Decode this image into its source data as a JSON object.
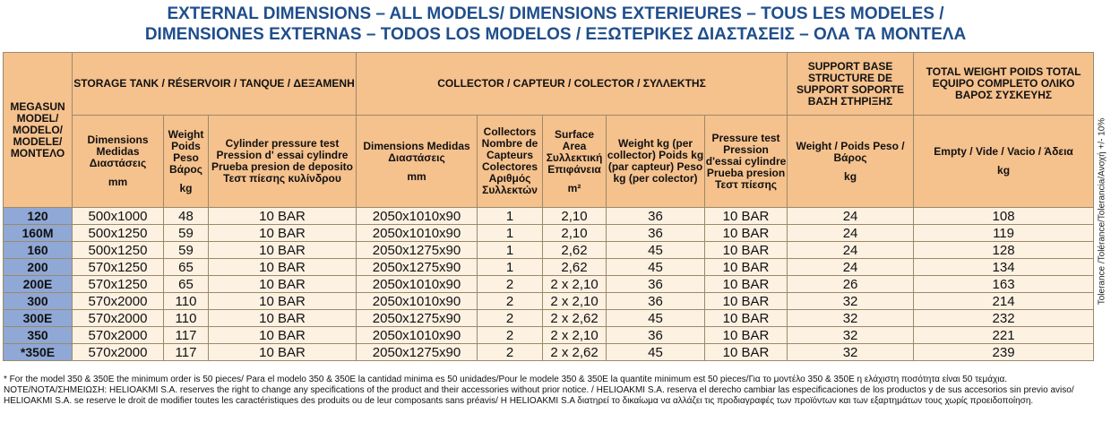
{
  "title": {
    "line1": "EXTERNAL DIMENSIONS – ALL MODELS/ DIMENSIONS EXTERIEURES – TOUS LES MODELES /",
    "line2": "DIMENSIONES EXTERNAS – TODOS LOS MODELOS / ΕΞΩΤΕΡΙΚΕΣ ΔΙΑΣΤΑΣΕΙΣ – ΟΛΑ ΤΑ ΜΟΝΤΕΛΑ"
  },
  "table": {
    "model_header": "MEGASUN MODEL/ MODELO/ MODELE/ ΜΟΝΤΕΛΟ",
    "groups": {
      "storage": "STORAGE TANK / RÉSERVOIR / TANQUE / ΔΕΞΑΜΕΝΗ",
      "collector": "COLLECTOR / CAPTEUR / COLECTOR / ΣΥΛΛΕΚΤΗΣ",
      "support": "SUPPORT BASE STRUCTURE DE SUPPORT SOPORTE ΒΑΣΗ ΣΤΗΡΙΞΗΣ",
      "weight": "TOTAL WEIGHT POIDS TOTAL EQUIPO COMPLETO ΟΛΙΚΟ ΒΑΡΟΣ ΣΥΣΚΕΥΗΣ"
    },
    "subheaders": {
      "tank_dim": "Dimensions Medidas Διαστάσεις",
      "tank_dim_unit": "mm",
      "tank_weight": "Weight Poids Peso Βάρος",
      "tank_weight_unit": "kg",
      "cyl_test": "Cylinder pressure test Pression d' essai cylindre Prueba presion de deposito Τεστ πίεσης κυλίνδρου",
      "col_dim": "Dimensions Medidas Διαστάσεις",
      "col_dim_unit": "mm",
      "col_count": "Collectors Nombre de Capteurs Colectores Αριθμός Συλλεκτών",
      "surface": "Surface Area Συλλεκτική Επιφάνεια",
      "surface_unit": "m²",
      "col_weight": "Weight kg (per collector) Poids kg (par capteur) Peso kg (per colector)",
      "col_test": "Pressure test Pression d'essai cylindre Prueba presion Τεστ πίεσης",
      "support_weight": "Weight / Poids Peso / Βάρος",
      "support_weight_unit": "kg",
      "empty": "Empty / Vide / Vacio / Άδεια",
      "empty_unit": "kg"
    },
    "rows": [
      [
        "120",
        "500x1000",
        "48",
        "10 BAR",
        "2050x1010x90",
        "1",
        "2,10",
        "36",
        "10 BAR",
        "24",
        "108"
      ],
      [
        "160M",
        "500x1250",
        "59",
        "10 BAR",
        "2050x1010x90",
        "1",
        "2,10",
        "36",
        "10 BAR",
        "24",
        "119"
      ],
      [
        "160",
        "500x1250",
        "59",
        "10 BAR",
        "2050x1275x90",
        "1",
        "2,62",
        "45",
        "10 BAR",
        "24",
        "128"
      ],
      [
        "200",
        "570x1250",
        "65",
        "10 BAR",
        "2050x1275x90",
        "1",
        "2,62",
        "45",
        "10 BAR",
        "24",
        "134"
      ],
      [
        "200E",
        "570x1250",
        "65",
        "10 BAR",
        "2050x1010x90",
        "2",
        "2 x 2,10",
        "36",
        "10 BAR",
        "26",
        "163"
      ],
      [
        "300",
        "570x2000",
        "110",
        "10 BAR",
        "2050x1010x90",
        "2",
        "2 x 2,10",
        "36",
        "10 BAR",
        "32",
        "214"
      ],
      [
        "300E",
        "570x2000",
        "110",
        "10 BAR",
        "2050x1275x90",
        "2",
        "2 x 2,62",
        "45",
        "10 BAR",
        "32",
        "232"
      ],
      [
        "350",
        "570x2000",
        "117",
        "10 BAR",
        "2050x1010x90",
        "2",
        "2 x 2,10",
        "36",
        "10 BAR",
        "32",
        "221"
      ],
      [
        "*350E",
        "570x2000",
        "117",
        "10 BAR",
        "2050x1275x90",
        "2",
        "2 x 2,62",
        "45",
        "10 BAR",
        "32",
        "239"
      ]
    ]
  },
  "side_note": "Tolerance /Tolérance/Tolerancia/Ανοχή +/- 10%",
  "footnotes": {
    "order": "* For the model 350 & 350E the minimum order is 50 pieces/ Para el modelo 350 & 350E la cantidad minima es 50 unidades/Pour le modele 350 & 350E la quantite minimum est 50 pieces/Για το μοντέλο 350 & 350Ε η ελάχιστη ποσότητα είναι 50 τεμάχια.",
    "note": "NOTE/NOTA/ΣΗΜΕΙΩΣΗ: HELIOAKMI S.A. reserves the right to change any specifications of the product and their accessories without prior notice. / HELIOAKMI S.A. reserva el derecho cambiar las especificaciones de los productos y de sus accesorios sin previo aviso/ HELIOAKMI S.A. se reserve le droit de modifier toutes les caractéristiques des produits ou de leur composants sans préavis/ Η HELIOAKMI S.A διατηρεί το δικαίωμα να αλλάζει τις προδιαγραφές των προϊόντων και των εξαρτημάτων τους χωρίς προειδοποίηση."
  }
}
